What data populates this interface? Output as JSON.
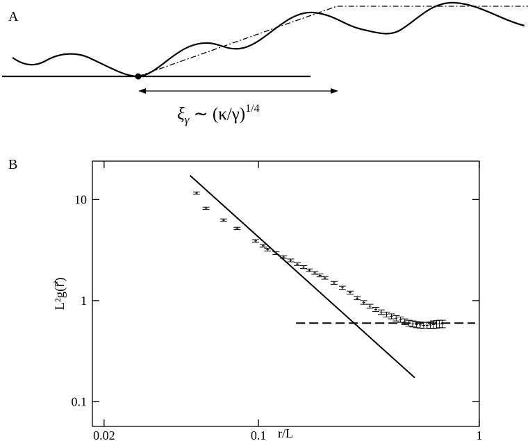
{
  "panel_a": {
    "label": "A",
    "formula": {
      "base": "ξ",
      "sub": "γ",
      "body": " ∼ (κ/γ)",
      "sup": "1/4"
    }
  },
  "panel_b": {
    "label": "B"
  },
  "chart_data": {
    "type": "scatter",
    "xlabel": "r/L",
    "ylabel": "L²g(r⃗)",
    "xscale": "log",
    "yscale": "log",
    "xlim": [
      0.0177,
      1.0
    ],
    "ylim": [
      0.057,
      24
    ],
    "xticks": [
      0.02,
      0.1,
      1
    ],
    "yticks": [
      0.1,
      1,
      10
    ],
    "series": [
      {
        "kind": "errorbar",
        "color": "#000000",
        "x": [
          0.0524,
          0.0579,
          0.0695,
          0.08,
          0.097,
          0.105,
          0.11,
          0.12,
          0.13,
          0.14,
          0.15,
          0.16,
          0.17,
          0.18,
          0.19,
          0.2,
          0.22,
          0.24,
          0.26,
          0.28,
          0.3,
          0.32,
          0.34,
          0.36,
          0.38,
          0.4,
          0.42,
          0.44,
          0.46,
          0.48,
          0.5,
          0.52,
          0.54,
          0.56,
          0.58,
          0.6,
          0.62,
          0.64,
          0.66,
          0.68
        ],
        "values": [
          11.6,
          8.2,
          6.26,
          5.18,
          3.9,
          3.49,
          3.2,
          2.95,
          2.7,
          2.5,
          2.3,
          2.15,
          2.0,
          1.88,
          1.78,
          1.68,
          1.5,
          1.34,
          1.2,
          1.06,
          0.96,
          0.88,
          0.82,
          0.77,
          0.73,
          0.7,
          0.67,
          0.65,
          0.62,
          0.6,
          0.59,
          0.58,
          0.575,
          0.57,
          0.57,
          0.575,
          0.58,
          0.585,
          0.59,
          0.59
        ],
        "errors": [
          0.3,
          0.22,
          0.17,
          0.14,
          0.12,
          0.11,
          0.1,
          0.09,
          0.08,
          0.08,
          0.07,
          0.07,
          0.06,
          0.06,
          0.06,
          0.05,
          0.05,
          0.05,
          0.04,
          0.04,
          0.04,
          0.04,
          0.04,
          0.04,
          0.04,
          0.04,
          0.04,
          0.04,
          0.04,
          0.04,
          0.04,
          0.04,
          0.04,
          0.04,
          0.04,
          0.04,
          0.05,
          0.05,
          0.05,
          0.05
        ]
      },
      {
        "kind": "line",
        "dash": "solid",
        "color": "#000000",
        "x": [
          0.049,
          0.51
        ],
        "values": [
          17.3,
          0.173
        ]
      },
      {
        "kind": "line",
        "dash": "dashed",
        "color": "#000000",
        "x": [
          0.148,
          0.957
        ],
        "values": [
          0.6,
          0.6
        ]
      }
    ]
  }
}
